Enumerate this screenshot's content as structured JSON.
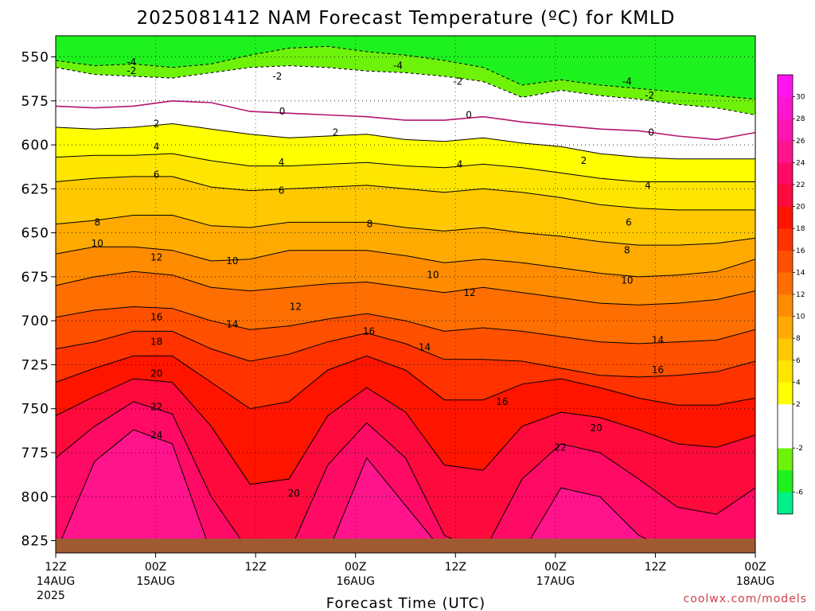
{
  "chart_data": {
    "type": "heatmap",
    "title": "2025081412 NAM Forecast Temperature (ºC) for KMLD",
    "xlabel": "Forecast Time (UTC)",
    "ylabel": "",
    "y_axis": {
      "ticks": [
        550,
        575,
        600,
        625,
        650,
        675,
        700,
        725,
        750,
        775,
        800,
        825
      ],
      "range": [
        538,
        832
      ],
      "inverted": true
    },
    "x_axis": {
      "ticks": [
        {
          "hour": 0,
          "label": "12Z",
          "sub": "14AUG",
          "sub2": "2025"
        },
        {
          "hour": 12,
          "label": "00Z",
          "sub": "15AUG",
          "sub2": ""
        },
        {
          "hour": 24,
          "label": "12Z",
          "sub": "",
          "sub2": ""
        },
        {
          "hour": 36,
          "label": "00Z",
          "sub": "16AUG",
          "sub2": ""
        },
        {
          "hour": 48,
          "label": "12Z",
          "sub": "",
          "sub2": ""
        },
        {
          "hour": 60,
          "label": "00Z",
          "sub": "17AUG",
          "sub2": ""
        },
        {
          "hour": 72,
          "label": "12Z",
          "sub": "",
          "sub2": ""
        },
        {
          "hour": 84,
          "label": "00Z",
          "sub": "18AUG",
          "sub2": ""
        }
      ],
      "range": [
        0,
        84
      ]
    },
    "colorbar": {
      "levels": [
        -8,
        -6,
        -4,
        -2,
        0,
        2,
        4,
        6,
        8,
        10,
        12,
        14,
        16,
        18,
        20,
        22,
        24,
        26,
        28,
        30,
        32
      ],
      "tick_labels": [
        "-6",
        "-2",
        "2",
        "4",
        "6",
        "8",
        "10",
        "12",
        "14",
        "16",
        "18",
        "20",
        "22",
        "24",
        "26",
        "28",
        "30"
      ],
      "colors": [
        "#00f08a",
        "#1ef21e",
        "#6ef20a",
        "#ffffff",
        "#ffffff",
        "#ffff00",
        "#ffe600",
        "#ffc800",
        "#ffaa00",
        "#ff8c00",
        "#ff6e00",
        "#ff5000",
        "#ff3200",
        "#ff1400",
        "#ff0a3c",
        "#ff0a64",
        "#ff148c",
        "#ff14b4",
        "#ff14d2",
        "#ff14f0"
      ]
    },
    "contour_levels": [
      -4,
      -2,
      0,
      2,
      4,
      6,
      8,
      10,
      12,
      14,
      16,
      18,
      20,
      22,
      24
    ],
    "contours": [
      {
        "level": -4,
        "p": [
          552,
          555,
          554,
          556,
          554,
          549,
          545,
          544,
          547,
          549,
          552,
          556,
          566,
          563,
          566,
          568,
          570,
          572,
          574
        ]
      },
      {
        "level": -2,
        "p": [
          556,
          560,
          561,
          562,
          559,
          556,
          555,
          556,
          558,
          559,
          561,
          564,
          573,
          569,
          572,
          574,
          577,
          579,
          583
        ]
      },
      {
        "level": 0,
        "p": [
          578,
          579,
          578,
          575,
          576,
          581,
          582,
          583,
          584,
          586,
          586,
          584,
          587,
          589,
          591,
          592,
          595,
          597,
          593
        ]
      },
      {
        "level": 2,
        "p": [
          590,
          591,
          590,
          588,
          591,
          594,
          596,
          595,
          594,
          597,
          598,
          596,
          599,
          601,
          605,
          607,
          608,
          608,
          608
        ]
      },
      {
        "level": 4,
        "p": [
          607,
          606,
          606,
          605,
          609,
          612,
          612,
          611,
          610,
          612,
          613,
          611,
          613,
          616,
          619,
          621,
          621,
          621,
          621
        ]
      },
      {
        "level": 6,
        "p": [
          621,
          619,
          618,
          618,
          624,
          626,
          625,
          624,
          623,
          625,
          627,
          625,
          627,
          630,
          634,
          636,
          637,
          637,
          637
        ]
      },
      {
        "level": 8,
        "p": [
          645,
          643,
          640,
          640,
          646,
          647,
          644,
          644,
          644,
          647,
          649,
          647,
          650,
          652,
          655,
          657,
          657,
          656,
          653
        ]
      },
      {
        "level": 10,
        "p": [
          662,
          658,
          658,
          660,
          666,
          665,
          660,
          660,
          660,
          663,
          667,
          665,
          667,
          670,
          673,
          675,
          674,
          672,
          665
        ]
      },
      {
        "level": 12,
        "p": [
          680,
          675,
          672,
          674,
          681,
          683,
          681,
          679,
          678,
          681,
          684,
          681,
          684,
          687,
          690,
          691,
          690,
          688,
          683
        ]
      },
      {
        "level": 14,
        "p": [
          698,
          694,
          692,
          693,
          700,
          705,
          703,
          699,
          696,
          700,
          706,
          704,
          706,
          709,
          712,
          713,
          712,
          711,
          705
        ]
      },
      {
        "level": 16,
        "p": [
          716,
          712,
          706,
          706,
          716,
          723,
          719,
          712,
          707,
          713,
          722,
          722,
          723,
          727,
          731,
          732,
          731,
          729,
          723
        ]
      },
      {
        "level": 18,
        "p": [
          735,
          727,
          720,
          720,
          735,
          750,
          746,
          728,
          720,
          728,
          745,
          745,
          736,
          733,
          738,
          744,
          748,
          748,
          744
        ]
      },
      {
        "level": 20,
        "p": [
          754,
          743,
          733,
          735,
          760,
          793,
          790,
          754,
          738,
          752,
          782,
          785,
          760,
          752,
          755,
          762,
          770,
          772,
          765
        ]
      },
      {
        "level": 22,
        "p": [
          778,
          760,
          746,
          753,
          800,
          832,
          832,
          782,
          758,
          778,
          822,
          832,
          790,
          770,
          775,
          790,
          806,
          810,
          795
        ]
      },
      {
        "level": 24,
        "p": [
          832,
          780,
          762,
          770,
          832,
          832,
          832,
          832,
          778,
          805,
          832,
          832,
          832,
          795,
          800,
          822,
          832,
          832,
          832
        ]
      }
    ],
    "contour_labels": [
      {
        "text": "-4",
        "x": 9.1,
        "p": 553
      },
      {
        "text": "-2",
        "x": 9.1,
        "p": 558
      },
      {
        "text": "-4",
        "x": 41.1,
        "p": 555
      },
      {
        "text": "-2",
        "x": 26.6,
        "p": 561
      },
      {
        "text": "-2",
        "x": 48.3,
        "p": 564
      },
      {
        "text": "-4",
        "x": 68.6,
        "p": 564
      },
      {
        "text": "-2",
        "x": 71.3,
        "p": 572
      },
      {
        "text": "0",
        "x": 27.2,
        "p": 581
      },
      {
        "text": "0",
        "x": 49.6,
        "p": 583
      },
      {
        "text": "0",
        "x": 71.5,
        "p": 593
      },
      {
        "text": "2",
        "x": 12.1,
        "p": 588
      },
      {
        "text": "2",
        "x": 33.6,
        "p": 593
      },
      {
        "text": "2",
        "x": 63.4,
        "p": 609
      },
      {
        "text": "4",
        "x": 12.1,
        "p": 601
      },
      {
        "text": "4",
        "x": 27.1,
        "p": 610
      },
      {
        "text": "4",
        "x": 48.5,
        "p": 611
      },
      {
        "text": "4",
        "x": 71.1,
        "p": 623
      },
      {
        "text": "6",
        "x": 12.1,
        "p": 617
      },
      {
        "text": "6",
        "x": 27.1,
        "p": 626
      },
      {
        "text": "6",
        "x": 68.8,
        "p": 644
      },
      {
        "text": "8",
        "x": 5.0,
        "p": 644
      },
      {
        "text": "8",
        "x": 37.7,
        "p": 645
      },
      {
        "text": "8",
        "x": 68.6,
        "p": 660
      },
      {
        "text": "10",
        "x": 5.0,
        "p": 656
      },
      {
        "text": "10",
        "x": 21.2,
        "p": 666
      },
      {
        "text": "10",
        "x": 45.3,
        "p": 674
      },
      {
        "text": "10",
        "x": 68.6,
        "p": 677
      },
      {
        "text": "12",
        "x": 12.1,
        "p": 664
      },
      {
        "text": "12",
        "x": 28.8,
        "p": 692
      },
      {
        "text": "12",
        "x": 49.7,
        "p": 684
      },
      {
        "text": "14",
        "x": 21.2,
        "p": 702
      },
      {
        "text": "14",
        "x": 44.3,
        "p": 715
      },
      {
        "text": "14",
        "x": 72.3,
        "p": 711
      },
      {
        "text": "16",
        "x": 12.1,
        "p": 698
      },
      {
        "text": "16",
        "x": 37.6,
        "p": 706
      },
      {
        "text": "16",
        "x": 53.6,
        "p": 746
      },
      {
        "text": "16",
        "x": 72.3,
        "p": 728
      },
      {
        "text": "18",
        "x": 12.1,
        "p": 712
      },
      {
        "text": "20",
        "x": 12.1,
        "p": 730
      },
      {
        "text": "20",
        "x": 28.6,
        "p": 798
      },
      {
        "text": "20",
        "x": 64.9,
        "p": 761
      },
      {
        "text": "22",
        "x": 12.1,
        "p": 749
      },
      {
        "text": "22",
        "x": 60.6,
        "p": 772
      },
      {
        "text": "24",
        "x": 12.1,
        "p": 765
      }
    ],
    "terrain_color": "#a05a32",
    "credit": "coolwx.com/models"
  }
}
